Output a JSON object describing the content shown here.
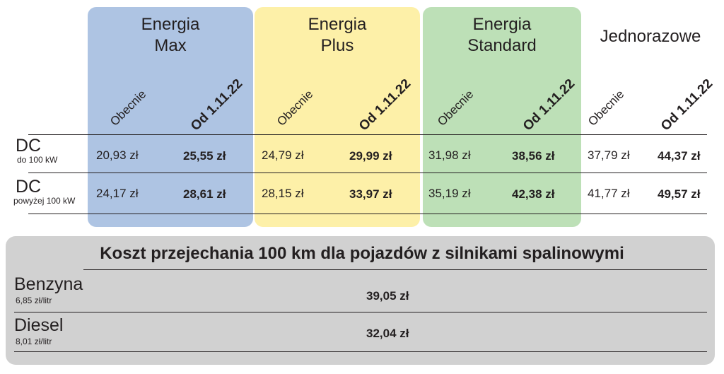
{
  "colors": {
    "energia_max": "#aec4e3",
    "energia_plus": "#fdf0a8",
    "energia_standard": "#bde0b7",
    "fuel_panel": "#d1d1d1"
  },
  "plans": [
    {
      "name": "Energia\nMax"
    },
    {
      "name": "Energia\nPlus"
    },
    {
      "name": "Energia\nStandard"
    },
    {
      "name": "Jednorazowe"
    }
  ],
  "column_headers": {
    "current": "Obecnie",
    "from_date": "Od 1.11.22"
  },
  "rows": [
    {
      "label": "DC",
      "sublabel": "do 100 kW",
      "prices": [
        {
          "current": "20,93 zł",
          "new": "25,55 zł"
        },
        {
          "current": "24,79 zł",
          "new": "29,99 zł"
        },
        {
          "current": "31,98 zł",
          "new": "38,56 zł"
        },
        {
          "current": "37,79 zł",
          "new": "44,37 zł"
        }
      ]
    },
    {
      "label": "DC",
      "sublabel": "powyżej 100 kW",
      "prices": [
        {
          "current": "24,17 zł",
          "new": "28,61 zł"
        },
        {
          "current": "28,15 zł",
          "new": "33,97 zł"
        },
        {
          "current": "35,19 zł",
          "new": "42,38 zł"
        },
        {
          "current": "41,77 zł",
          "new": "49,57 zł"
        }
      ]
    }
  ],
  "fuel_section": {
    "title": "Koszt przejechania 100 km dla pojazdów z silnikami spalinowymi",
    "items": [
      {
        "name": "Benzyna",
        "price": "6,85 zł/litr",
        "cost": "39,05 zł"
      },
      {
        "name": "Diesel",
        "price": "8,01 zł/litr",
        "cost": "32,04 zł"
      }
    ]
  }
}
